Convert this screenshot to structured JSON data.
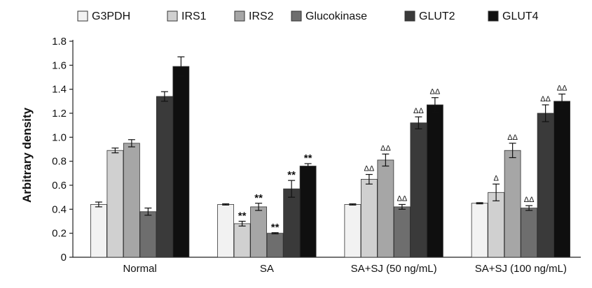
{
  "chart_data": {
    "type": "bar",
    "title": "",
    "xlabel": "",
    "ylabel": "Arbitrary density",
    "ylim": [
      0,
      1.8
    ],
    "yticks": [
      "0",
      "0.2",
      "0.4",
      "0.6",
      "0.8",
      "1.0",
      "1.2",
      "1.4",
      "1.6",
      "1.8"
    ],
    "grid": false,
    "legend_position": "top",
    "categories": [
      "Normal",
      "SA",
      "SA+SJ (50 ng/mL)",
      "SA+SJ (100 ng/mL)"
    ],
    "series": [
      {
        "name": "G3PDH",
        "color": "#f2f2f2",
        "values": [
          0.44,
          0.44,
          0.44,
          0.45
        ],
        "errors": [
          0.02,
          0.005,
          0.005,
          0.005
        ],
        "annotations": [
          "",
          "",
          "",
          ""
        ]
      },
      {
        "name": "IRS1",
        "color": "#d0d0d0",
        "values": [
          0.89,
          0.28,
          0.65,
          0.54
        ],
        "errors": [
          0.02,
          0.02,
          0.04,
          0.07
        ],
        "annotations": [
          "",
          "**",
          "ΔΔ",
          "Δ"
        ]
      },
      {
        "name": "IRS2",
        "color": "#a6a6a6",
        "values": [
          0.95,
          0.42,
          0.81,
          0.89
        ],
        "errors": [
          0.03,
          0.03,
          0.05,
          0.06
        ],
        "annotations": [
          "",
          "**",
          "ΔΔ",
          "ΔΔ"
        ]
      },
      {
        "name": "Glucokinase",
        "color": "#6e6e6e",
        "values": [
          0.38,
          0.2,
          0.42,
          0.41
        ],
        "errors": [
          0.03,
          0.005,
          0.02,
          0.02
        ],
        "annotations": [
          "",
          "**",
          "ΔΔ",
          "ΔΔ"
        ]
      },
      {
        "name": "GLUT2",
        "color": "#3a3a3a",
        "values": [
          1.34,
          0.57,
          1.12,
          1.2
        ],
        "errors": [
          0.04,
          0.07,
          0.05,
          0.07
        ],
        "annotations": [
          "",
          "**",
          "ΔΔ",
          "ΔΔ"
        ]
      },
      {
        "name": "GLUT4",
        "color": "#0f0f0f",
        "values": [
          1.59,
          0.76,
          1.27,
          1.3
        ],
        "errors": [
          0.08,
          0.02,
          0.06,
          0.06
        ],
        "annotations": [
          "",
          "**",
          "ΔΔ",
          "ΔΔ"
        ]
      }
    ]
  },
  "footnote": ""
}
